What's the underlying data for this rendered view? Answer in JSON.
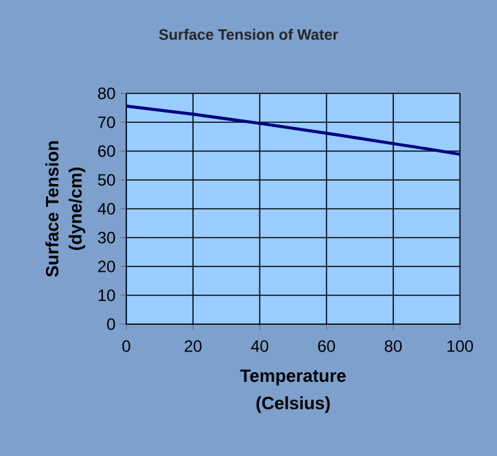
{
  "chart_data": {
    "type": "line",
    "title": "Surface Tension of Water",
    "xlabel": "Temperature\n(Celsius)",
    "ylabel": "Surface Tension\n(dyne/cm)",
    "x": [
      0,
      10,
      20,
      30,
      40,
      50,
      60,
      70,
      80,
      90,
      100
    ],
    "series": [
      {
        "color": "#000080",
        "values": [
          75.6,
          74.2,
          72.8,
          71.2,
          69.6,
          67.9,
          66.2,
          64.4,
          62.6,
          60.8,
          58.9
        ]
      }
    ],
    "xlim": [
      0,
      100
    ],
    "ylim": [
      0,
      80
    ],
    "xticks": [
      0,
      20,
      40,
      60,
      80,
      100
    ],
    "yticks": [
      0,
      10,
      20,
      30,
      40,
      50,
      60,
      70,
      80
    ],
    "grid": true,
    "marker": "none",
    "line_style": "solid"
  }
}
